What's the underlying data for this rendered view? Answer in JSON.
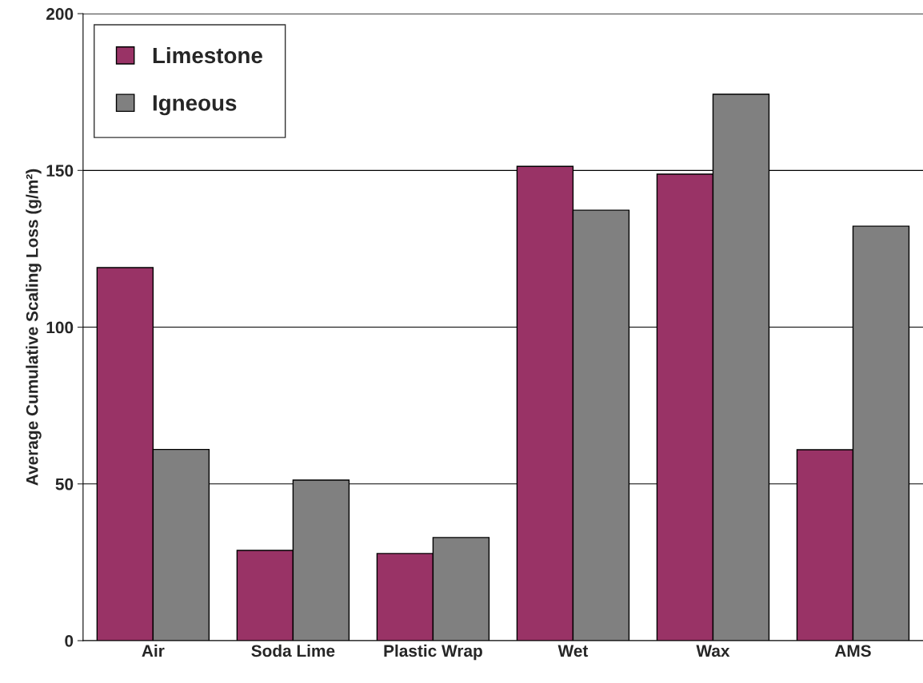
{
  "chart_data": {
    "type": "bar",
    "ylabel": "Average Cumulative Scaling Loss (g/m²)",
    "categories": [
      "Air",
      "Soda Lime",
      "Plastic Wrap",
      "Wet",
      "Wax",
      "AMS"
    ],
    "series": [
      {
        "name": "Limestone",
        "color": "#993366",
        "values": [
          119,
          28.8,
          27.8,
          151.3,
          148.8,
          60.9
        ]
      },
      {
        "name": "Igneous",
        "color": "#808080",
        "values": [
          61,
          51.2,
          32.9,
          137.3,
          174.3,
          132.2
        ]
      }
    ],
    "ylim": [
      0,
      200
    ],
    "yticks": [
      0,
      50,
      100,
      150,
      200
    ],
    "grid": "y",
    "legend": "top left"
  }
}
